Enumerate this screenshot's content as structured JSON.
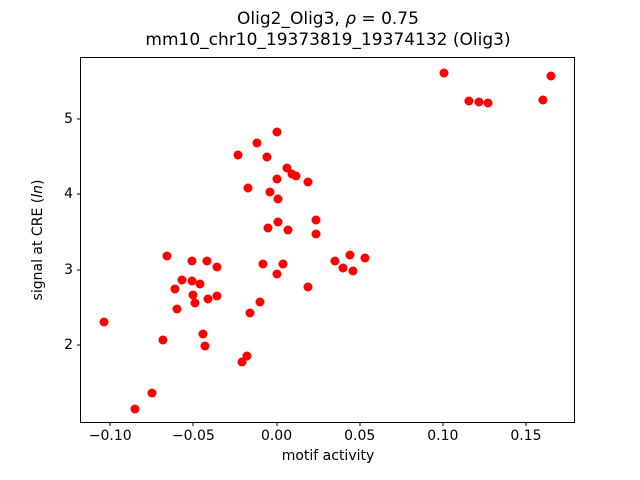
{
  "header": {
    "title_pre": "Olig2_Olig3, ",
    "title_rho": "ρ",
    "title_post": " = 0.75",
    "subtitle": "mm10_chr10_19373819_19374132 (Olig3)"
  },
  "ylabel_parts": {
    "pre": "signal at CRE (",
    "italic": "ln",
    "post": ")"
  },
  "chart_data": {
    "type": "scatter",
    "title": "Olig2_Olig3, ρ = 0.75",
    "subtitle": "mm10_chr10_19373819_19374132 (Olig3)",
    "xlabel": "motif activity",
    "ylabel": "signal at CRE (ln)",
    "legend": "none",
    "grid": false,
    "marker_color": "#ff0000",
    "marker_size_px": 9,
    "xlim": [
      -0.1176,
      0.1789
    ],
    "ylim": [
      0.98,
      5.81
    ],
    "x_ticks": [
      {
        "value": -0.1,
        "label": "−0.10"
      },
      {
        "value": -0.05,
        "label": "−0.05"
      },
      {
        "value": 0.0,
        "label": "0.00"
      },
      {
        "value": 0.05,
        "label": "0.05"
      },
      {
        "value": 0.1,
        "label": "0.10"
      },
      {
        "value": 0.15,
        "label": "0.15"
      }
    ],
    "y_ticks": [
      {
        "value": 2,
        "label": "2"
      },
      {
        "value": 3,
        "label": "3"
      },
      {
        "value": 4,
        "label": "4"
      },
      {
        "value": 5,
        "label": "5"
      }
    ],
    "points": [
      [
        0.0,
        4.83
      ],
      [
        -0.012,
        4.68
      ],
      [
        -0.023,
        4.52
      ],
      [
        -0.006,
        4.49
      ],
      [
        0.006,
        4.35
      ],
      [
        0.009,
        4.27
      ],
      [
        0.012,
        4.24
      ],
      [
        0.0,
        4.21
      ],
      [
        0.019,
        4.17
      ],
      [
        -0.017,
        4.09
      ],
      [
        -0.004,
        4.03
      ],
      [
        0.001,
        3.94
      ],
      [
        0.001,
        3.63
      ],
      [
        -0.005,
        3.56
      ],
      [
        0.007,
        3.53
      ],
      [
        0.024,
        3.66
      ],
      [
        0.024,
        3.48
      ],
      [
        0.101,
        5.61
      ],
      [
        0.165,
        5.57
      ],
      [
        0.116,
        5.24
      ],
      [
        0.122,
        5.22
      ],
      [
        0.127,
        5.21
      ],
      [
        0.16,
        5.25
      ],
      [
        -0.008,
        3.08
      ],
      [
        0.004,
        3.08
      ],
      [
        0.0,
        2.94
      ],
      [
        0.019,
        2.77
      ],
      [
        0.035,
        3.11
      ],
      [
        0.044,
        3.19
      ],
      [
        0.053,
        3.15
      ],
      [
        0.04,
        3.02
      ],
      [
        0.046,
        2.98
      ],
      [
        -0.066,
        3.18
      ],
      [
        -0.051,
        3.12
      ],
      [
        -0.042,
        3.11
      ],
      [
        -0.036,
        3.04
      ],
      [
        -0.057,
        2.87
      ],
      [
        -0.051,
        2.85
      ],
      [
        -0.046,
        2.81
      ],
      [
        -0.061,
        2.75
      ],
      [
        -0.05,
        2.66
      ],
      [
        -0.049,
        2.56
      ],
      [
        -0.041,
        2.61
      ],
      [
        -0.036,
        2.65
      ],
      [
        -0.06,
        2.48
      ],
      [
        -0.01,
        2.57
      ],
      [
        -0.016,
        2.42
      ],
      [
        -0.104,
        2.31
      ],
      [
        -0.068,
        2.07
      ],
      [
        -0.044,
        2.15
      ],
      [
        -0.043,
        1.99
      ],
      [
        -0.018,
        1.85
      ],
      [
        -0.021,
        1.77
      ],
      [
        -0.075,
        1.36
      ],
      [
        -0.085,
        1.15
      ]
    ]
  }
}
